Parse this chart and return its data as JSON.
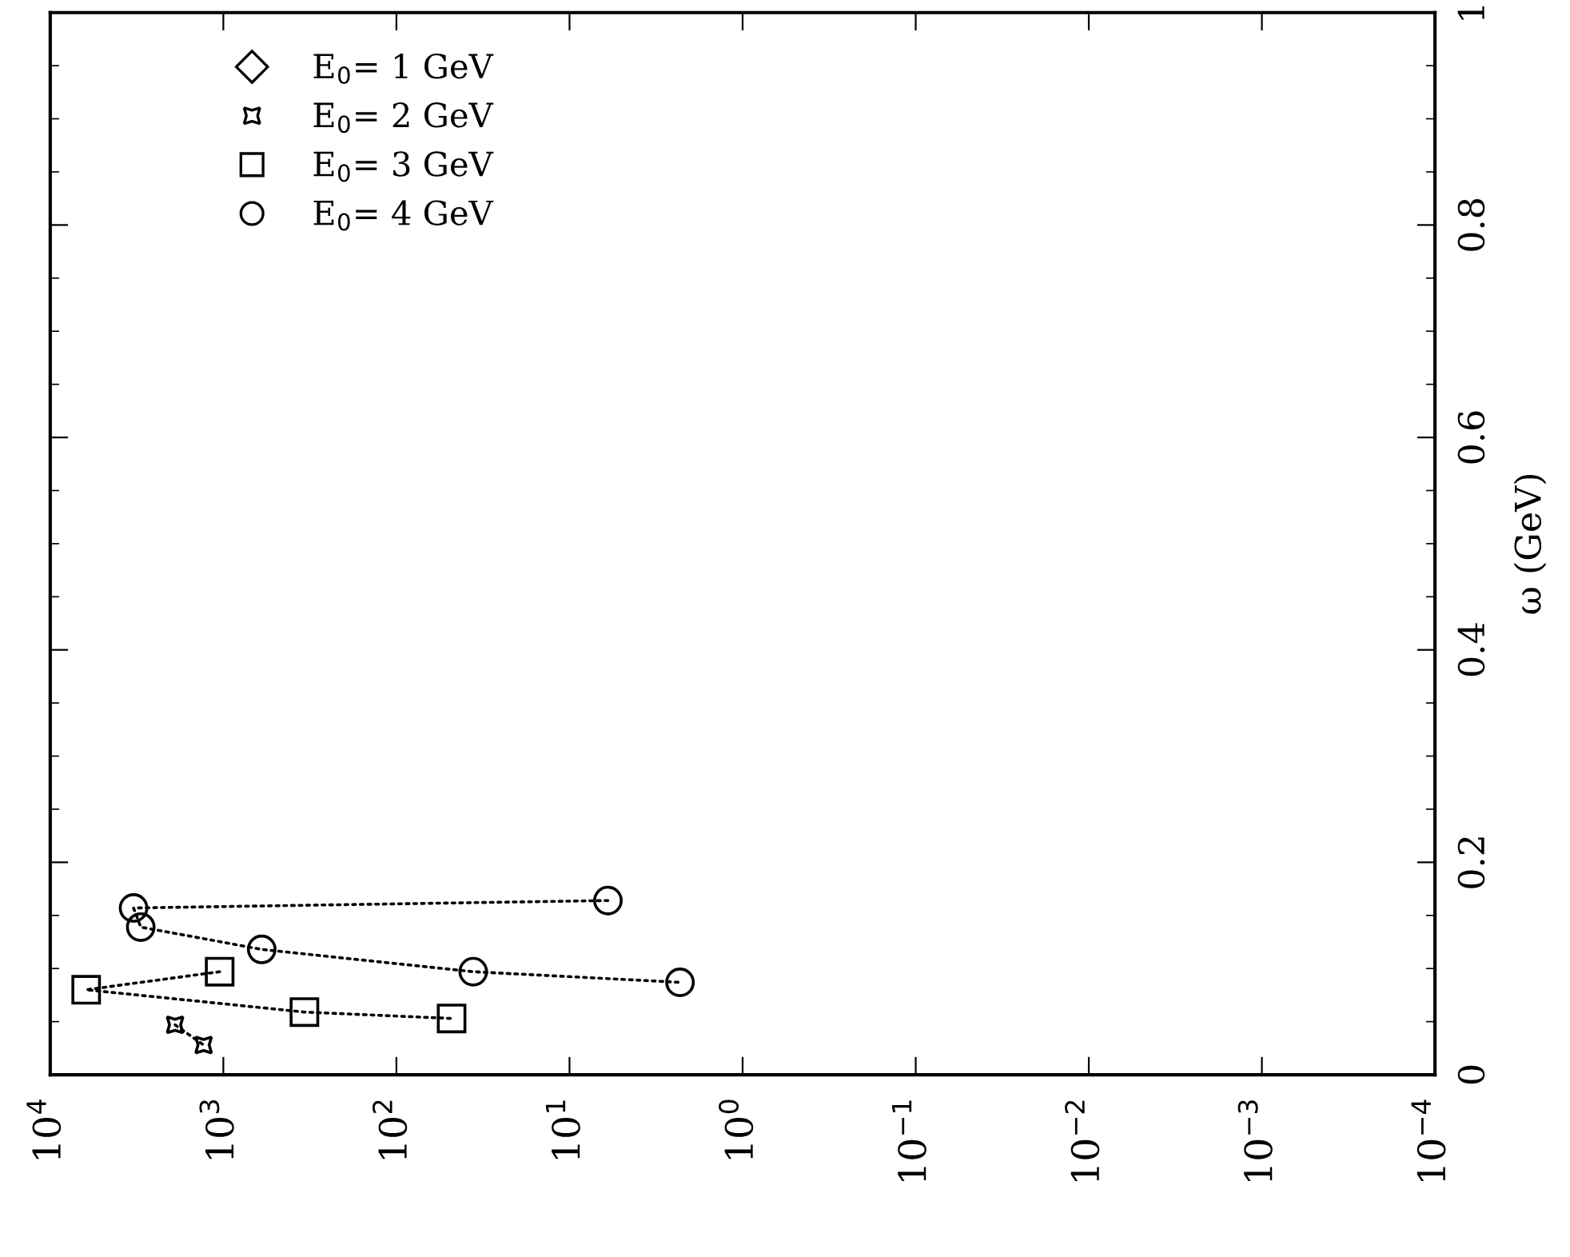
{
  "chart_data": {
    "type": "line",
    "ylabel": "ω (GeV)",
    "log": "x",
    "xlim": [
      10000,
      0.0001
    ],
    "xticks": [
      {
        "value": 10000,
        "label": "10$^{4}$"
      },
      {
        "value": 1000,
        "label": "10$^{3}$"
      },
      {
        "value": 100,
        "label": "10$^{2}$"
      },
      {
        "value": 10,
        "label": "10$^{1}$"
      },
      {
        "value": 1,
        "label": "10$^{0}$"
      },
      {
        "value": 0.1,
        "label": "10$^{−1}$"
      },
      {
        "value": 0.01,
        "label": "10$^{−2}$"
      },
      {
        "value": 0.001,
        "label": "10$^{−3}$"
      },
      {
        "value": 0.0001,
        "label": "10$^{−4}$"
      }
    ],
    "ylim": [
      0,
      1
    ],
    "yticks": [
      0,
      {
        "value": 0.05,
        "label": null
      },
      {
        "value": 0.1,
        "label": null
      },
      {
        "value": 0.15,
        "label": null
      },
      0.2,
      {
        "value": 0.25,
        "label": null
      },
      {
        "value": 0.3,
        "label": null
      },
      {
        "value": 0.35,
        "label": null
      },
      0.4,
      {
        "value": 0.45,
        "label": null
      },
      {
        "value": 0.5,
        "label": null
      },
      {
        "value": 0.55,
        "label": null
      },
      0.6,
      {
        "value": 0.65,
        "label": null
      },
      {
        "value": 0.7,
        "label": null
      },
      {
        "value": 0.75,
        "label": null
      },
      0.8,
      {
        "value": 0.85,
        "label": null
      },
      {
        "value": 0.9,
        "label": null
      },
      {
        "value": 0.95,
        "label": null
      },
      1
    ],
    "grid": false,
    "legend": "top left",
    "line_style": "dotted",
    "series": [
      {
        "name": "E$_{0}$= 1 GeV",
        "color": "#000000",
        "marker": "diamond"
      },
      {
        "name": "E$_{0}$= 2 GeV",
        "color": "#000000",
        "marker": "star",
        "x": [
          1900,
          1300
        ],
        "values": [
          0.047,
          0.028
        ]
      },
      {
        "name": "E$_{0}$= 3 GeV",
        "color": "#000000",
        "marker": "square",
        "x": [
          1050,
          6200,
          340,
          48
        ],
        "values": [
          0.097,
          0.08,
          0.059,
          0.053
        ]
      },
      {
        "name": "E$_{0}$= 4 GeV",
        "color": "#000000",
        "marker": "circle",
        "x": [
          6,
          3300,
          3000,
          600,
          36,
          2.3
        ],
        "values": [
          0.164,
          0.157,
          0.139,
          0.118,
          0.097,
          0.087
        ]
      }
    ]
  }
}
